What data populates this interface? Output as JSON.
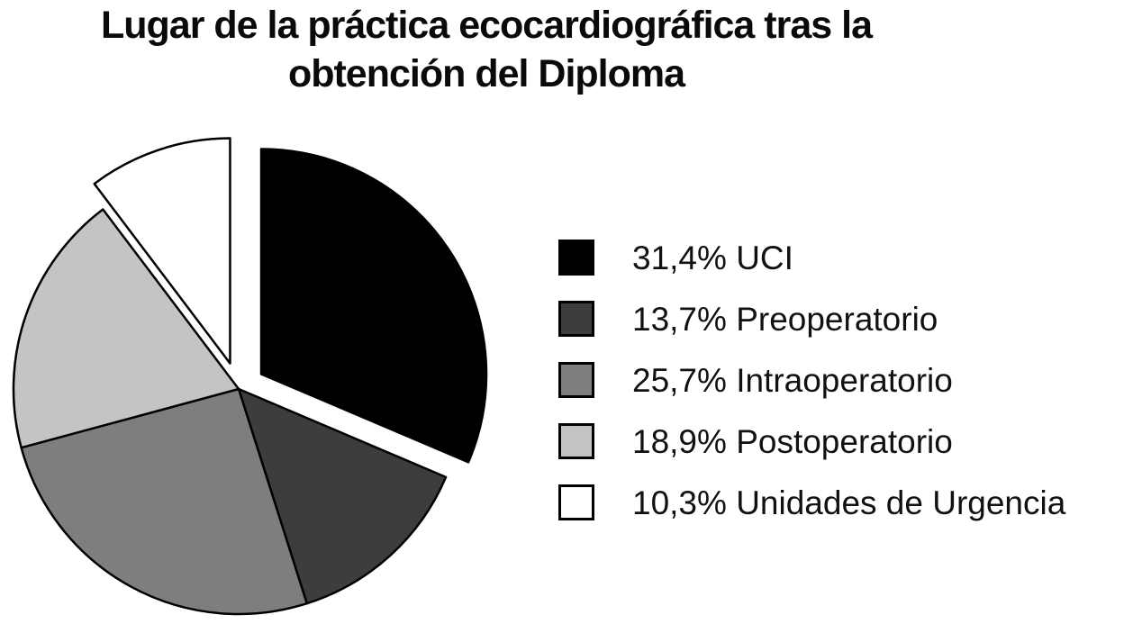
{
  "chart_data": {
    "type": "pie",
    "title": "Lugar de la práctica ecocardiográfica tras la obtención del Diploma",
    "title_lines": [
      "Lugar de la práctica ecocardiográfica tras la",
      "obtención del Diploma"
    ],
    "start_angle": 0,
    "direction": "clockwise",
    "stroke_color": "#000000",
    "background": "#ffffff",
    "legend_position": "right",
    "slices": [
      {
        "id": "uci",
        "label": "UCI",
        "value": 31.4,
        "display": "31,4% UCI",
        "color": "#000000",
        "exploded": true
      },
      {
        "id": "preoperatorio",
        "label": "Preoperatorio",
        "value": 13.7,
        "display": "13,7% Preoperatorio",
        "color": "#3d3d3d",
        "exploded": false
      },
      {
        "id": "intraoperatorio",
        "label": "Intraoperatorio",
        "value": 25.7,
        "display": "25,7% Intraoperatorio",
        "color": "#7e7e7e",
        "exploded": false
      },
      {
        "id": "postoperatorio",
        "label": "Postoperatorio",
        "value": 18.9,
        "display": "18,9% Postoperatorio",
        "color": "#c4c4c4",
        "exploded": false
      },
      {
        "id": "urgencia",
        "label": "Unidades de Urgencia",
        "value": 10.3,
        "display": "10,3% Unidades de Urgencia",
        "color": "#ffffff",
        "exploded": true
      }
    ]
  }
}
